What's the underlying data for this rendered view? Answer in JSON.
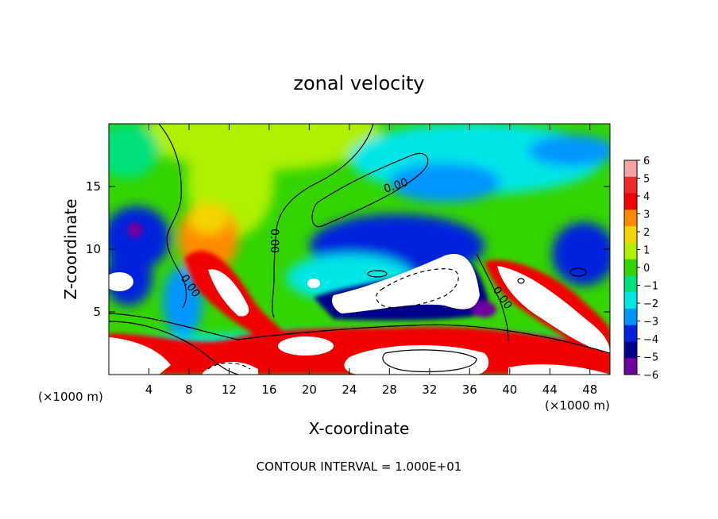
{
  "chart_data": {
    "type": "heatmap",
    "title": "zonal velocity",
    "xlabel": "X-coordinate",
    "ylabel": "Z-coordinate",
    "x_unit_left": "(×1000 m)",
    "x_unit_right": "(×1000 m)",
    "footer": "CONTOUR INTERVAL = 1.000E+01",
    "xlim": [
      0,
      50
    ],
    "ylim": [
      0,
      20
    ],
    "x_ticks": [
      4,
      8,
      12,
      16,
      20,
      24,
      28,
      32,
      36,
      40,
      44,
      48
    ],
    "y_ticks": [
      5,
      10,
      15
    ],
    "colorbar": {
      "values": [
        6,
        5,
        4,
        3,
        2,
        1,
        0,
        -1,
        -2,
        -3,
        -4,
        -5,
        -6
      ],
      "colors": [
        "#f5a3a3",
        "#ee2a2a",
        "#f00000",
        "#ff8a00",
        "#f4d400",
        "#aef000",
        "#33d400",
        "#00e07a",
        "#00e6e6",
        "#0096ff",
        "#0022dd",
        "#00008c",
        "#7000a0"
      ],
      "saturated_high_color": "#ffffff"
    },
    "contour_labels": [
      "0.00",
      "0.00",
      "0.00",
      "0.00"
    ],
    "grid": false
  }
}
